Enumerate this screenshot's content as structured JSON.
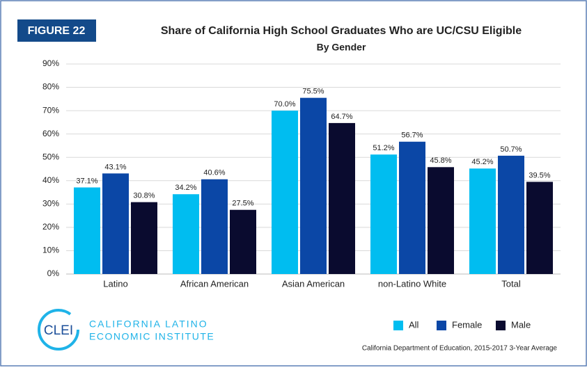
{
  "figure_label": "FIGURE 22",
  "logo": {
    "abbr": "CLEI",
    "line1": "CALIFORNIA LATINO",
    "line2": "ECONOMIC INSTITUTE"
  },
  "chart_data": {
    "type": "bar",
    "title": "Share of California High School Graduates Who are UC/CSU Eligible",
    "subtitle": "By Gender",
    "source": "California Department of Education, 2015-2017 3-Year Average",
    "categories": [
      "Latino",
      "African American",
      "Asian American",
      "non-Latino White",
      "Total"
    ],
    "series": [
      {
        "name": "All",
        "color": "#00bdf0",
        "values": [
          37.1,
          34.2,
          70.0,
          51.2,
          45.2
        ],
        "value_labels": [
          "37.1%",
          "34.2%",
          "70.0%",
          "51.2%",
          "45.2%"
        ]
      },
      {
        "name": "Female",
        "color": "#0b47a6",
        "values": [
          43.1,
          40.6,
          75.5,
          56.7,
          50.7
        ],
        "value_labels": [
          "43.1%",
          "40.6%",
          "75.5%",
          "56.7%",
          "50.7%"
        ]
      },
      {
        "name": "Male",
        "color": "#0a0b2f",
        "values": [
          30.8,
          27.5,
          64.7,
          45.8,
          39.5
        ],
        "value_labels": [
          "30.8%",
          "27.5%",
          "64.7%",
          "45.8%",
          "39.5%"
        ]
      }
    ],
    "ylim": [
      0,
      90
    ],
    "yticks": [
      {
        "value": 0,
        "label": "0%"
      },
      {
        "value": 10,
        "label": "10%"
      },
      {
        "value": 20,
        "label": "20%"
      },
      {
        "value": 30,
        "label": "30%"
      },
      {
        "value": 40,
        "label": "40%"
      },
      {
        "value": 50,
        "label": "50%"
      },
      {
        "value": 60,
        "label": "60%"
      },
      {
        "value": 70,
        "label": "70%"
      },
      {
        "value": 80,
        "label": "80%"
      },
      {
        "value": 90,
        "label": "90%"
      }
    ],
    "grid": true,
    "legend": "bottom-right"
  }
}
